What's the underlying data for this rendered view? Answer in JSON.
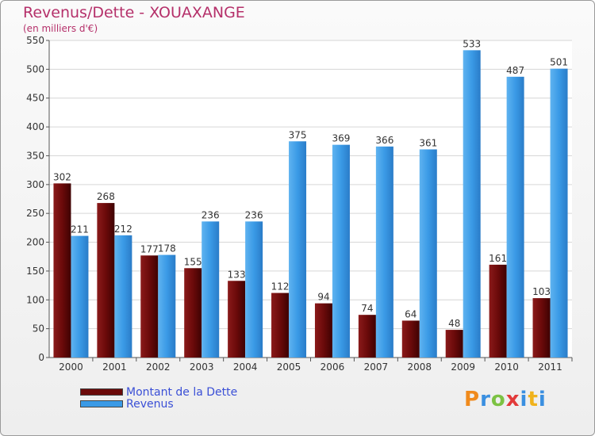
{
  "header": {
    "title": "Revenus/Dette - XOUAXANGE",
    "subtitle": "(en milliers d'€)"
  },
  "legend": {
    "items": [
      {
        "label": "Montant de la Dette",
        "color": "#6b0a0a"
      },
      {
        "label": "Revenus",
        "color": "#3a9ae6"
      }
    ]
  },
  "logo": {
    "text": "Proxiti"
  },
  "chart_data": {
    "type": "bar",
    "categories": [
      "2000",
      "2001",
      "2002",
      "2003",
      "2004",
      "2005",
      "2006",
      "2007",
      "2008",
      "2009",
      "2010",
      "2011"
    ],
    "series": [
      {
        "name": "Montant de la Dette",
        "color": "#6b0a0a",
        "values": [
          302,
          268,
          177,
          155,
          133,
          112,
          94,
          74,
          64,
          48,
          161,
          103
        ]
      },
      {
        "name": "Revenus",
        "color": "#3a9ae6",
        "values": [
          211,
          212,
          178,
          236,
          236,
          375,
          369,
          366,
          361,
          533,
          487,
          501
        ]
      }
    ],
    "title": "Revenus/Dette - XOUAXANGE",
    "ylabel": "(en milliers d'€)",
    "ylim": [
      0,
      550
    ],
    "yticks": [
      0,
      50,
      100,
      150,
      200,
      250,
      300,
      350,
      400,
      450,
      500,
      550
    ],
    "grid": true,
    "legend_position": "bottom-left"
  }
}
